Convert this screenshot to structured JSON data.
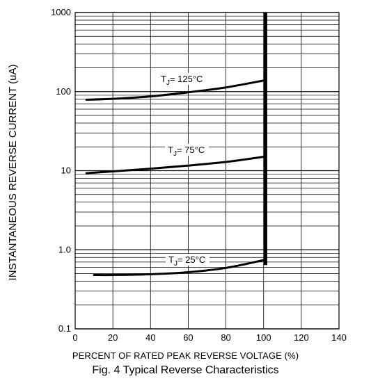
{
  "chart_data": {
    "type": "line",
    "title": "Fig. 4  Typical Reverse Characteristics",
    "xlabel": "PERCENT OF RATED PEAK REVERSE VOLTAGE (%)",
    "ylabel": "INSTANTANEOUS REVERSE CURRENT (uA)",
    "x_ticks": [
      "0",
      "20",
      "40",
      "60",
      "80",
      "100",
      "120",
      "140"
    ],
    "y_ticks": [
      "1000",
      "100",
      "10",
      "1.0",
      "0.1"
    ],
    "xlim": [
      0,
      140
    ],
    "ylim": [
      0.1,
      1000
    ],
    "y_scale": "log",
    "grid": true,
    "vertical_line_x": 101,
    "series": [
      {
        "label_prefix": "T",
        "label_sub": "J",
        "label_rest": "= 125°C",
        "x": [
          6,
          20,
          40,
          60,
          80,
          100
        ],
        "y": [
          79,
          81,
          87,
          98,
          113,
          138
        ]
      },
      {
        "label_prefix": "T",
        "label_sub": "J",
        "label_rest": "= 75°C",
        "x": [
          6,
          20,
          40,
          60,
          80,
          100
        ],
        "y": [
          9.3,
          9.8,
          10.6,
          11.6,
          12.9,
          15
        ]
      },
      {
        "label_prefix": "T",
        "label_sub": "J",
        "label_rest": "= 25°C",
        "x": [
          10,
          20,
          40,
          60,
          80,
          100
        ],
        "y": [
          0.48,
          0.48,
          0.49,
          0.52,
          0.59,
          0.74
        ]
      }
    ]
  }
}
